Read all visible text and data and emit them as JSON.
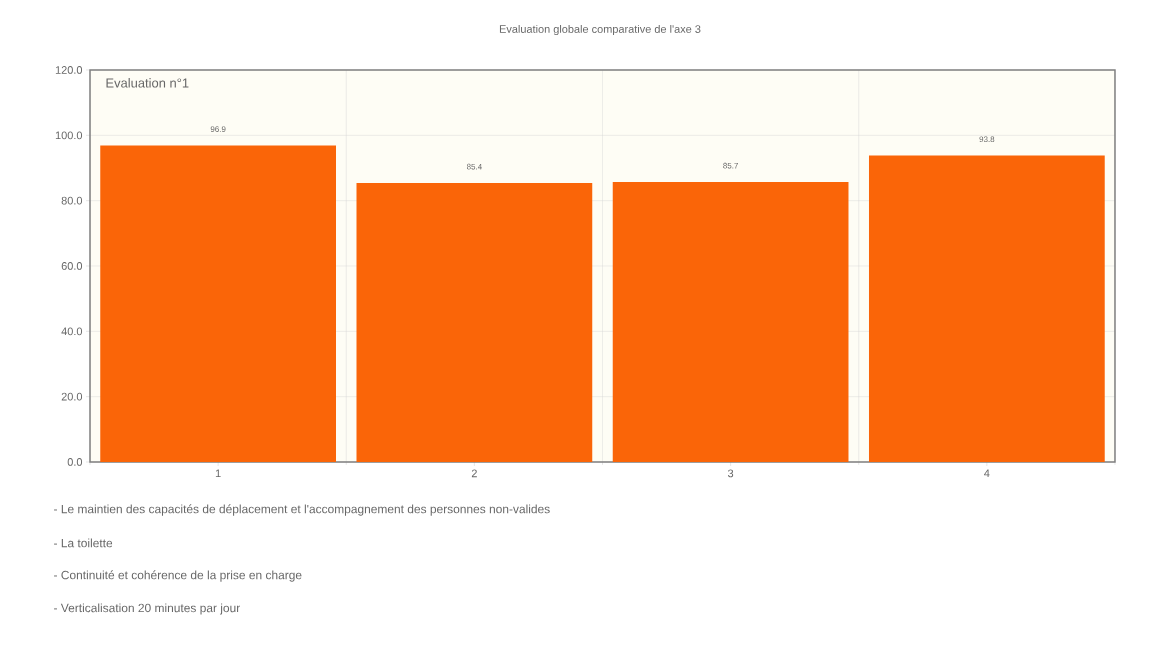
{
  "chart_data": {
    "type": "bar",
    "title": "Evaluation globale comparative de l'axe 3",
    "categories": [
      "1",
      "2",
      "3",
      "4"
    ],
    "series": [
      {
        "name": "Evaluation n°1",
        "color": "#fa6508",
        "values": [
          96.9,
          85.4,
          85.7,
          93.8
        ]
      }
    ],
    "ylim": [
      0,
      120
    ],
    "yticks": [
      {
        "value": 0,
        "label": "0.0"
      },
      {
        "value": 20,
        "label": "20.0"
      },
      {
        "value": 40,
        "label": "40.0"
      },
      {
        "value": 60,
        "label": "60.0"
      },
      {
        "value": 80,
        "label": "80.0"
      },
      {
        "value": 100,
        "label": "100.0"
      },
      {
        "value": 120,
        "label": "120.0"
      }
    ],
    "data_labels": true,
    "grid": true,
    "legend": "top left",
    "annotations": [
      "- Le maintien des capacités de déplacement et l'accompagnement des personnes non-valides",
      "- La toilette",
      "- Continuité et cohérence de la prise en charge",
      "- Verticalisation 20 minutes par jour"
    ]
  }
}
